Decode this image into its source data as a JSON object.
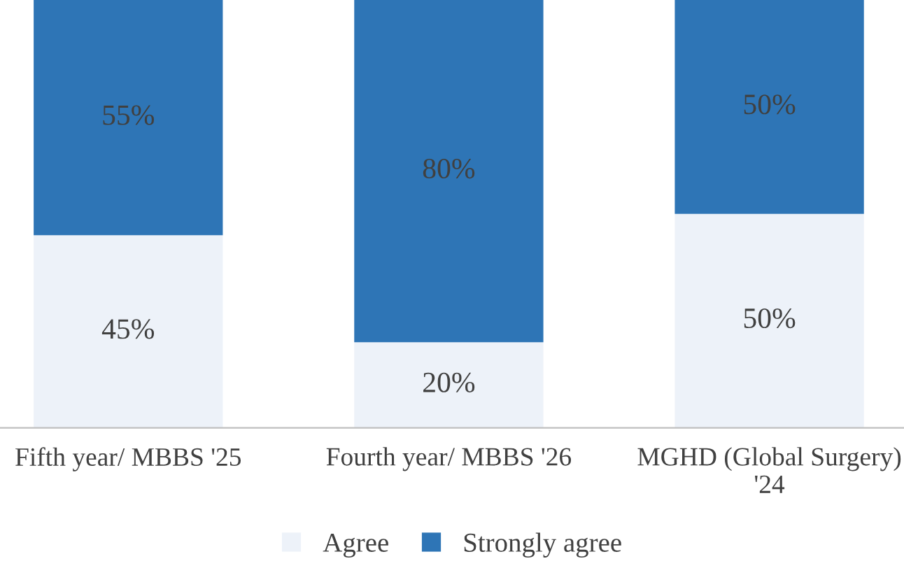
{
  "chart_data": {
    "type": "bar",
    "stacked": true,
    "categories": [
      "Fifth year/ MBBS '25",
      "Fourth year/ MBBS '26",
      "MGHD (Global Surgery) '24"
    ],
    "series": [
      {
        "name": "Agree",
        "color": "#edf2f9",
        "values": [
          45,
          20,
          50
        ],
        "value_labels": [
          "45%",
          "20%",
          "50%"
        ]
      },
      {
        "name": "Strongly agree",
        "color": "#2e75b6",
        "values": [
          55,
          80,
          50
        ],
        "value_labels": [
          "55%",
          "80%",
          "50%"
        ]
      }
    ],
    "legend": "bottom",
    "grid": false
  }
}
